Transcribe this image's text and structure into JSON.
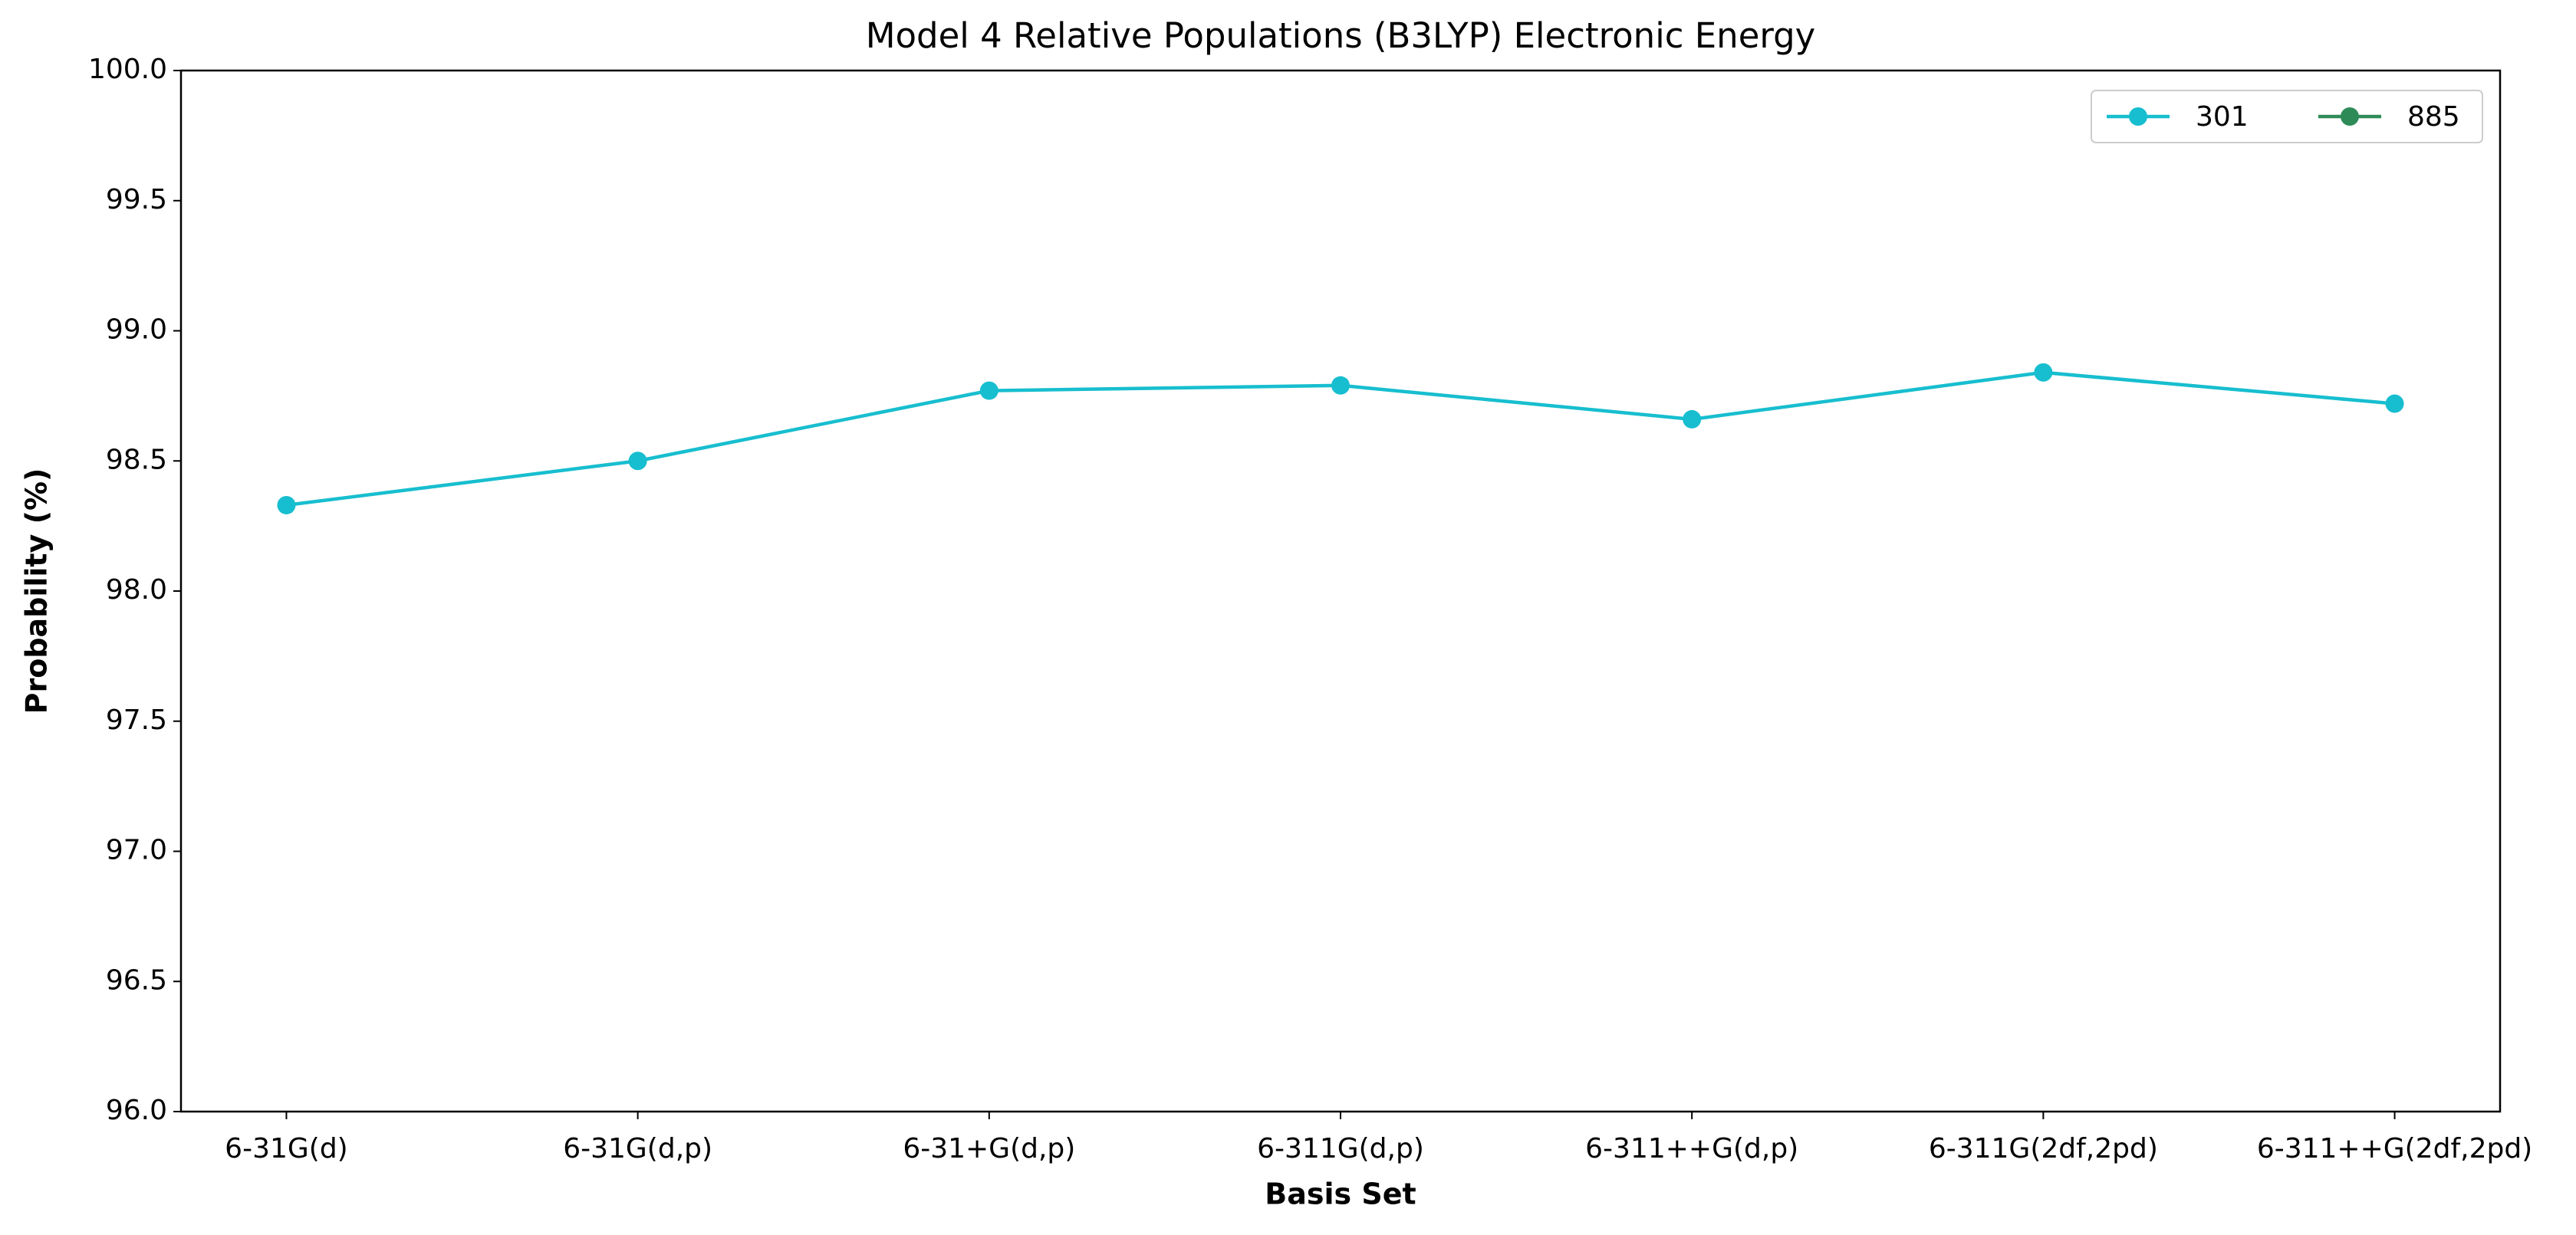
{
  "chart_data": {
    "type": "line",
    "title": "Model 4 Relative Populations (B3LYP) Electronic Energy",
    "xlabel": "Basis Set",
    "ylabel": "Probability (%)",
    "categories": [
      "6-31G(d)",
      "6-31G(d,p)",
      "6-31+G(d,p)",
      "6-311G(d,p)",
      "6-311++G(d,p)",
      "6-311G(2df,2pd)",
      "6-311++G(2df,2pd)"
    ],
    "series": [
      {
        "name": "301",
        "color": "#17becf",
        "values": [
          98.33,
          98.5,
          98.77,
          98.79,
          98.66,
          98.84,
          98.72
        ]
      },
      {
        "name": "885",
        "color": "#2e8b57",
        "values": [
          null,
          null,
          null,
          null,
          null,
          null,
          null
        ]
      }
    ],
    "ylim": [
      96.0,
      100.0
    ],
    "yticks": [
      {
        "value": 96,
        "label": "96.0"
      },
      96.5,
      {
        "value": 97,
        "label": "97.0"
      },
      97.5,
      {
        "value": 98,
        "label": "98.0"
      },
      98.5,
      {
        "value": 99,
        "label": "99.0"
      },
      99.5,
      {
        "value": 100,
        "label": "100.0"
      }
    ],
    "grid": false,
    "legend": "upper right"
  }
}
